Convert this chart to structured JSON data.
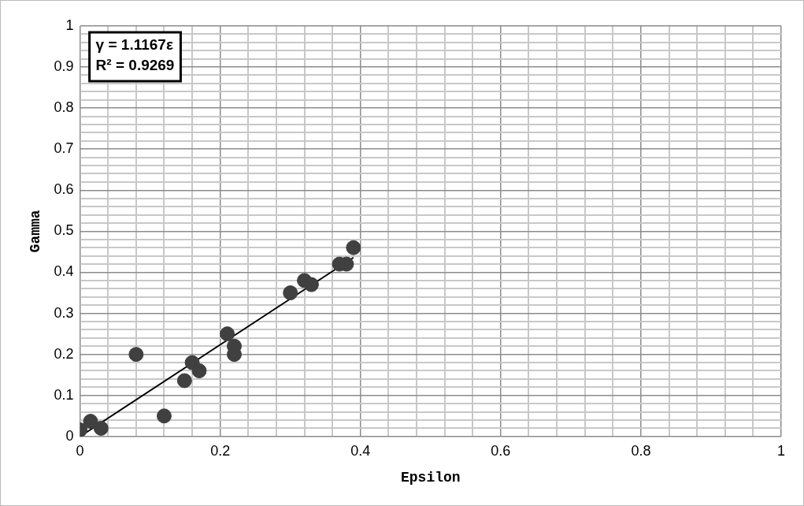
{
  "chart_data": {
    "type": "scatter",
    "xlabel": "Epsilon",
    "ylabel": "Gamma",
    "annotations": [
      "γ = 1.1167ε\nR² = 0.9269"
    ],
    "series": [
      {
        "type": "scatter",
        "color": "#404040",
        "marker": "circle",
        "x": [
          0,
          0.015,
          0.03,
          0.08,
          0.12,
          0.149,
          0.16,
          0.17,
          0.21,
          0.22,
          0.22,
          0.3,
          0.32,
          0.33,
          0.37,
          0.38,
          0.39
        ],
        "values": [
          0.016,
          0.037,
          0.02,
          0.2,
          0.05,
          0.136,
          0.18,
          0.16,
          0.25,
          0.22,
          0.2,
          0.35,
          0.38,
          0.37,
          0.42,
          0.42,
          0.46
        ]
      },
      {
        "type": "line",
        "color": "#000000",
        "marker": "none",
        "x": [
          0,
          0.39
        ],
        "values": [
          0,
          0.436
        ]
      }
    ],
    "xlim": [
      0,
      1
    ],
    "ylim": [
      0,
      1
    ],
    "xticks": [
      0,
      {
        "value": 0.04,
        "label": null
      },
      {
        "value": 0.08,
        "label": null
      },
      {
        "value": 0.12,
        "label": null
      },
      {
        "value": 0.16,
        "label": null
      },
      0.2,
      {
        "value": 0.24,
        "label": null
      },
      {
        "value": 0.28,
        "label": null
      },
      {
        "value": 0.32,
        "label": null
      },
      {
        "value": 0.36,
        "label": null
      },
      0.4,
      {
        "value": 0.44,
        "label": null
      },
      {
        "value": 0.48,
        "label": null
      },
      {
        "value": 0.52,
        "label": null
      },
      {
        "value": 0.56,
        "label": null
      },
      0.6,
      {
        "value": 0.64,
        "label": null
      },
      {
        "value": 0.68,
        "label": null
      },
      {
        "value": 0.72,
        "label": null
      },
      {
        "value": 0.76,
        "label": null
      },
      0.8,
      {
        "value": 0.84,
        "label": null
      },
      {
        "value": 0.88,
        "label": null
      },
      {
        "value": 0.92,
        "label": null
      },
      {
        "value": 0.96,
        "label": null
      },
      1
    ],
    "yticks": [
      0,
      {
        "value": 0.02,
        "label": null
      },
      {
        "value": 0.04,
        "label": null
      },
      {
        "value": 0.06,
        "label": null
      },
      {
        "value": 0.08,
        "label": null
      },
      0.1,
      {
        "value": 0.12,
        "label": null
      },
      {
        "value": 0.14,
        "label": null
      },
      {
        "value": 0.16,
        "label": null
      },
      {
        "value": 0.18,
        "label": null
      },
      0.2,
      {
        "value": 0.22,
        "label": null
      },
      {
        "value": 0.24,
        "label": null
      },
      {
        "value": 0.26,
        "label": null
      },
      {
        "value": 0.28,
        "label": null
      },
      0.3,
      {
        "value": 0.32,
        "label": null
      },
      {
        "value": 0.34,
        "label": null
      },
      {
        "value": 0.36,
        "label": null
      },
      {
        "value": 0.38,
        "label": null
      },
      0.4,
      {
        "value": 0.42,
        "label": null
      },
      {
        "value": 0.44,
        "label": null
      },
      {
        "value": 0.46,
        "label": null
      },
      {
        "value": 0.48,
        "label": null
      },
      0.5,
      {
        "value": 0.52,
        "label": null
      },
      {
        "value": 0.54,
        "label": null
      },
      {
        "value": 0.56,
        "label": null
      },
      {
        "value": 0.58,
        "label": null
      },
      0.6,
      {
        "value": 0.62,
        "label": null
      },
      {
        "value": 0.64,
        "label": null
      },
      {
        "value": 0.66,
        "label": null
      },
      {
        "value": 0.68,
        "label": null
      },
      0.7,
      {
        "value": 0.72,
        "label": null
      },
      {
        "value": 0.74,
        "label": null
      },
      {
        "value": 0.76,
        "label": null
      },
      {
        "value": 0.78,
        "label": null
      },
      0.8,
      {
        "value": 0.82,
        "label": null
      },
      {
        "value": 0.84,
        "label": null
      },
      {
        "value": 0.86,
        "label": null
      },
      {
        "value": 0.88,
        "label": null
      },
      0.9,
      {
        "value": 0.92,
        "label": null
      },
      {
        "value": 0.94,
        "label": null
      },
      {
        "value": 0.96,
        "label": null
      },
      {
        "value": 0.98,
        "label": null
      },
      1
    ],
    "grid": true,
    "legend": false
  }
}
